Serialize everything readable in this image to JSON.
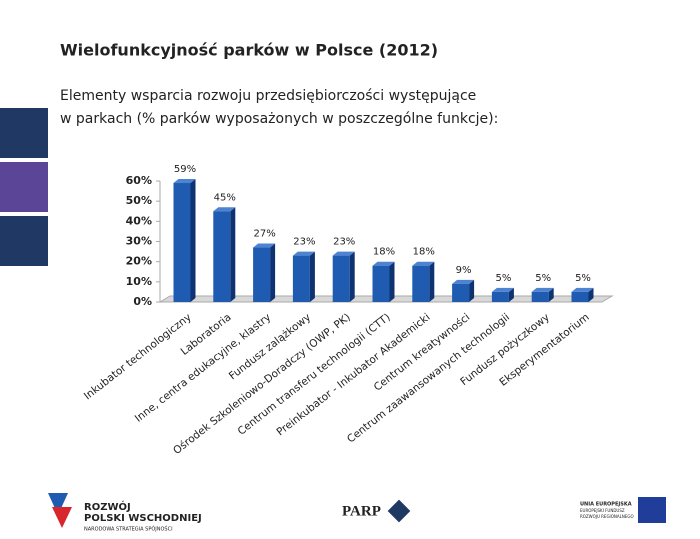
{
  "chart_data": {
    "type": "bar3d",
    "title": "Wielofunkcyjność parków w Polsce (2012)",
    "subtitle": [
      "Elementy wsparcia rozwoju przedsiębiorczości występujące",
      "w parkach (% parków wyposażonych w poszczególne funkcje):"
    ],
    "categories": [
      "Inkubator technologiczny",
      "Laboratoria",
      "Inne, centra edukacyjne, klastry",
      "Fundusz zalążkowy",
      "Ośrodek Szkoleniowo-Doradczy (OWP, PK)",
      "Centrum transferu technologii (CTT)",
      "Preinkubator - Inkubator Akademicki",
      "Centrum kreatywności",
      "Centrum zaawansowanych technologii",
      "Fundusz pożyczkowy",
      "Eksperymentatorium"
    ],
    "values": [
      59,
      45,
      27,
      23,
      23,
      18,
      18,
      9,
      5,
      5,
      5
    ],
    "value_labels": [
      "59%",
      "45%",
      "27%",
      "23%",
      "23%",
      "18%",
      "18%",
      "9%",
      "5%",
      "5%",
      "5%"
    ],
    "color": "#1f5bb0",
    "ylim": [
      0,
      60
    ],
    "yticks": [
      {
        "value": 0,
        "label": "0%"
      },
      {
        "value": 10,
        "label": "10%"
      },
      {
        "value": 20,
        "label": "20%"
      },
      {
        "value": 30,
        "label": "30%"
      },
      {
        "value": 40,
        "label": "40%"
      },
      {
        "value": 50,
        "label": "50%"
      },
      {
        "value": 60,
        "label": "60%"
      }
    ],
    "grid": false
  },
  "footer": {
    "logo1": [
      "ROZWÓJ",
      "POLSKI WSCHODNIEJ",
      "NARODOWA STRATEGIA SPÓJNOŚCI"
    ],
    "logo2": "PARP",
    "logo3": [
      "UNIA EUROPEJSKA",
      "EUROPEJSKI FUNDUSZ",
      "ROZWOJU REGIONALNEGO"
    ]
  }
}
